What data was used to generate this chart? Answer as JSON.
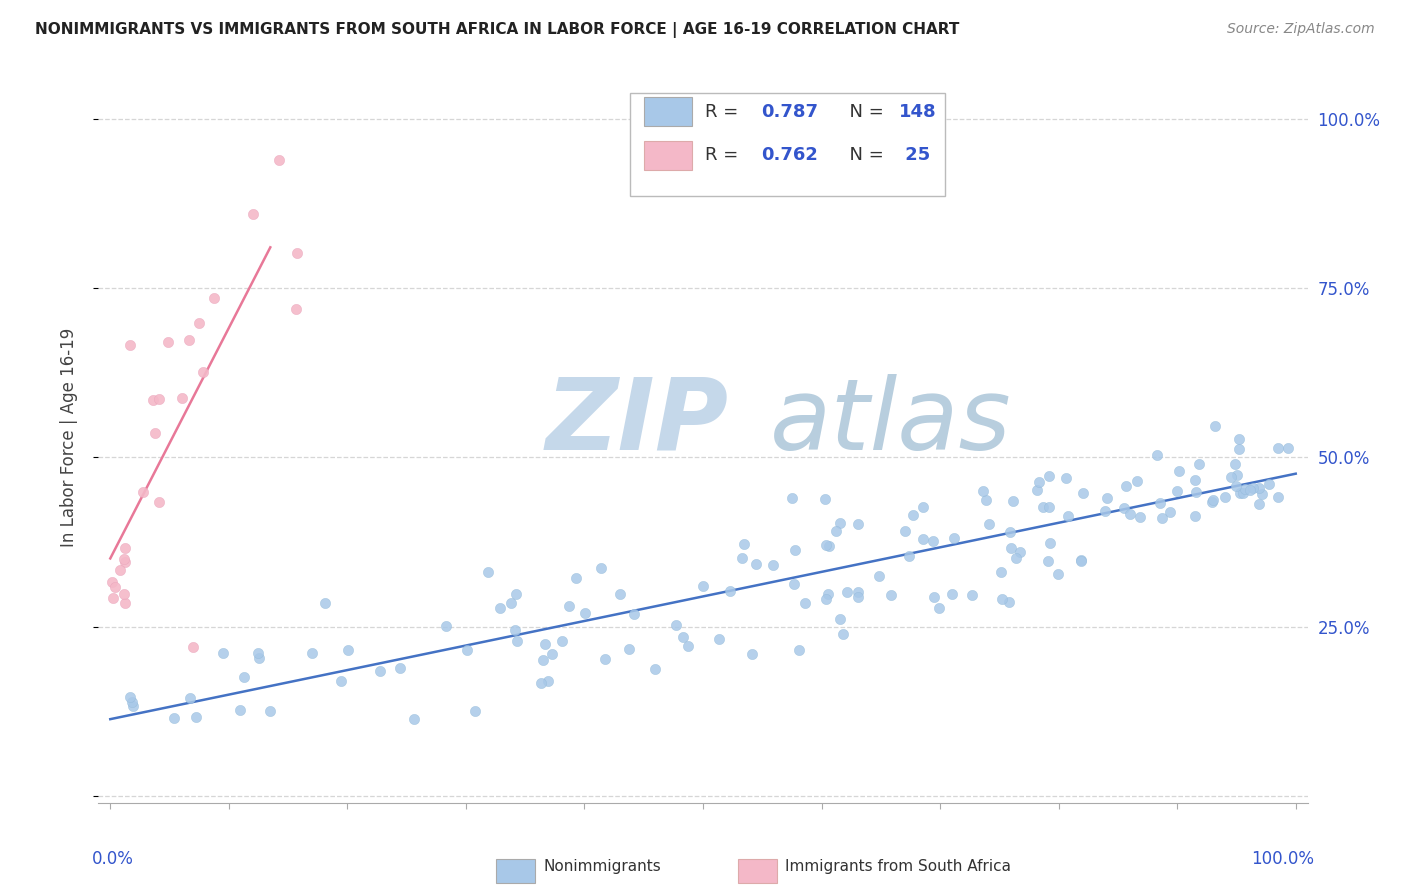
{
  "title": "NONIMMIGRANTS VS IMMIGRANTS FROM SOUTH AFRICA IN LABOR FORCE | AGE 16-19 CORRELATION CHART",
  "source": "Source: ZipAtlas.com",
  "ylabel": "In Labor Force | Age 16-19",
  "nonimmigrants_R": 0.787,
  "nonimmigrants_N": 148,
  "immigrants_R": 0.762,
  "immigrants_N": 25,
  "blue_scatter_color": "#a8c8e8",
  "blue_line_color": "#4472c4",
  "pink_scatter_color": "#f4b8c8",
  "pink_line_color": "#e87898",
  "legend_value_color": "#3355cc",
  "right_tick_color": "#3355cc",
  "grid_color": "#cccccc",
  "background_color": "#ffffff",
  "watermark_zip_color": "#c8d8e8",
  "watermark_atlas_color": "#b0c4d8"
}
